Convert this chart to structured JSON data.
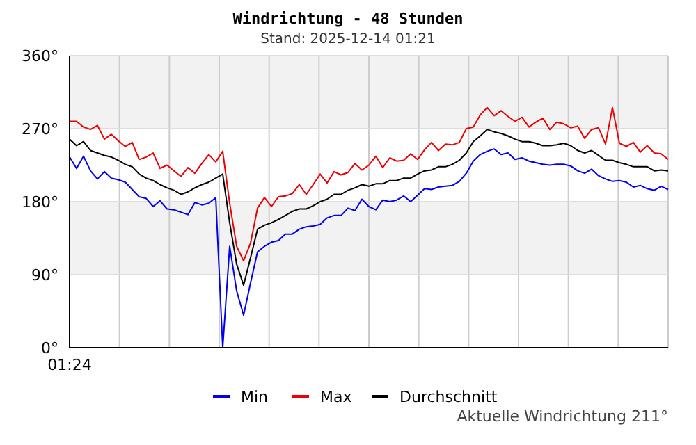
{
  "chart_data": {
    "type": "line",
    "title": "Windrichtung - 48 Stunden",
    "subtitle": "Stand: 2025-12-14 01:21",
    "categories": [
      null,
      null,
      null,
      null,
      null,
      null,
      null,
      null,
      null,
      null,
      null,
      null,
      null,
      null,
      null,
      null,
      null,
      null,
      null,
      null,
      null,
      null,
      null,
      null,
      null,
      null,
      null,
      null,
      null,
      null,
      null,
      null,
      null,
      null,
      null,
      null,
      null,
      null,
      null,
      null,
      null,
      null,
      null,
      null,
      null,
      null,
      null,
      null,
      null,
      null,
      null,
      null,
      null,
      null,
      null,
      null,
      null,
      null,
      null,
      null,
      null,
      null,
      null,
      null,
      null,
      null,
      null,
      null,
      null,
      null,
      null,
      null,
      null,
      null,
      null,
      null,
      null,
      null,
      null,
      null,
      null,
      null,
      null,
      null,
      null,
      null,
      null
    ],
    "series": [
      {
        "name": "Min",
        "color": "#0000ee",
        "values": [
          235,
          221,
          236,
          218,
          208,
          217,
          209,
          207,
          204,
          195,
          186,
          184,
          174,
          181,
          171,
          170,
          167,
          164,
          179,
          176,
          178,
          185,
          0,
          125,
          70,
          40,
          80,
          118,
          125,
          130,
          132,
          140,
          140,
          146,
          149,
          150,
          152,
          160,
          163,
          163,
          172,
          169,
          183,
          174,
          170,
          182,
          180,
          182,
          187,
          180,
          188,
          196,
          195,
          198,
          199,
          200,
          205,
          215,
          230,
          238,
          242,
          245,
          238,
          240,
          232,
          234,
          230,
          228,
          226,
          225,
          226,
          226,
          224,
          218,
          215,
          220,
          212,
          208,
          205,
          206,
          204,
          198,
          200,
          196,
          194,
          199,
          195
        ]
      },
      {
        "name": "Max",
        "color": "#ee0000",
        "values": [
          279,
          279,
          272,
          269,
          274,
          257,
          263,
          255,
          248,
          253,
          232,
          235,
          240,
          221,
          225,
          218,
          211,
          222,
          215,
          227,
          238,
          229,
          242,
          178,
          125,
          107,
          129,
          172,
          185,
          174,
          186,
          187,
          190,
          201,
          189,
          201,
          214,
          203,
          217,
          213,
          216,
          227,
          219,
          225,
          236,
          222,
          234,
          230,
          231,
          239,
          232,
          244,
          253,
          243,
          251,
          250,
          253,
          270,
          272,
          287,
          296,
          286,
          292,
          285,
          279,
          284,
          272,
          278,
          283,
          269,
          278,
          276,
          271,
          273,
          258,
          269,
          271,
          251,
          296,
          252,
          248,
          253,
          241,
          249,
          240,
          239,
          232
        ]
      },
      {
        "name": "Durchschnitt",
        "color": "#000000",
        "values": [
          257,
          249,
          254,
          243,
          240,
          237,
          235,
          231,
          226,
          223,
          214,
          209,
          206,
          201,
          197,
          194,
          189,
          192,
          197,
          201,
          204,
          209,
          214,
          154,
          103,
          77,
          111,
          146,
          151,
          154,
          158,
          163,
          168,
          171,
          171,
          175,
          180,
          183,
          189,
          189,
          194,
          197,
          201,
          199,
          202,
          202,
          206,
          206,
          209,
          209,
          214,
          218,
          219,
          223,
          223,
          226,
          231,
          240,
          254,
          261,
          269,
          266,
          264,
          261,
          257,
          254,
          254,
          252,
          249,
          249,
          250,
          252,
          249,
          243,
          240,
          243,
          237,
          231,
          231,
          228,
          226,
          223,
          223,
          223,
          218,
          219,
          218
        ]
      }
    ],
    "ylim": [
      0,
      360
    ],
    "yticks": [
      {
        "value": 0,
        "label": "0°"
      },
      {
        "value": 90,
        "label": "90°"
      },
      {
        "value": 180,
        "label": "180°"
      },
      {
        "value": 270,
        "label": "270°"
      },
      {
        "value": 360,
        "label": "360°"
      }
    ],
    "bands": [
      {
        "axis": "y",
        "from": 270,
        "to": 360,
        "color": "#f2f2f2"
      },
      {
        "axis": "y",
        "from": 90,
        "to": 180,
        "color": "#f2f2f2"
      }
    ],
    "grid": true,
    "legend": "bottom",
    "marker": "none",
    "line_style": "solid",
    "annotations": [
      "01:24",
      "Aktuelle Windrichtung 211°"
    ]
  }
}
